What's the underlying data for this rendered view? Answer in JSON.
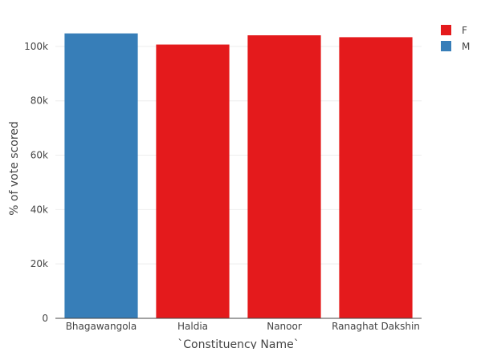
{
  "chart_data": {
    "type": "bar",
    "categories": [
      "Bhagawangola",
      "Haldia",
      "Nanoor",
      "Ranaghat Dakshin"
    ],
    "values": [
      104800,
      100700,
      104100,
      103400
    ],
    "category_series": [
      "M",
      "F",
      "F",
      "F"
    ],
    "xlabel": "`Constituency Name`",
    "ylabel": "% of vote scored",
    "ylim": [
      0,
      110300
    ],
    "yticks": [
      0,
      20000,
      40000,
      60000,
      80000,
      100000
    ],
    "ytick_labels": [
      "0",
      "20k",
      "40k",
      "60k",
      "80k",
      "100k"
    ],
    "grid": true,
    "legend": {
      "position": "top-right",
      "entries": [
        {
          "name": "F",
          "color": "#e41a1c"
        },
        {
          "name": "M",
          "color": "#377eb8"
        }
      ]
    }
  }
}
